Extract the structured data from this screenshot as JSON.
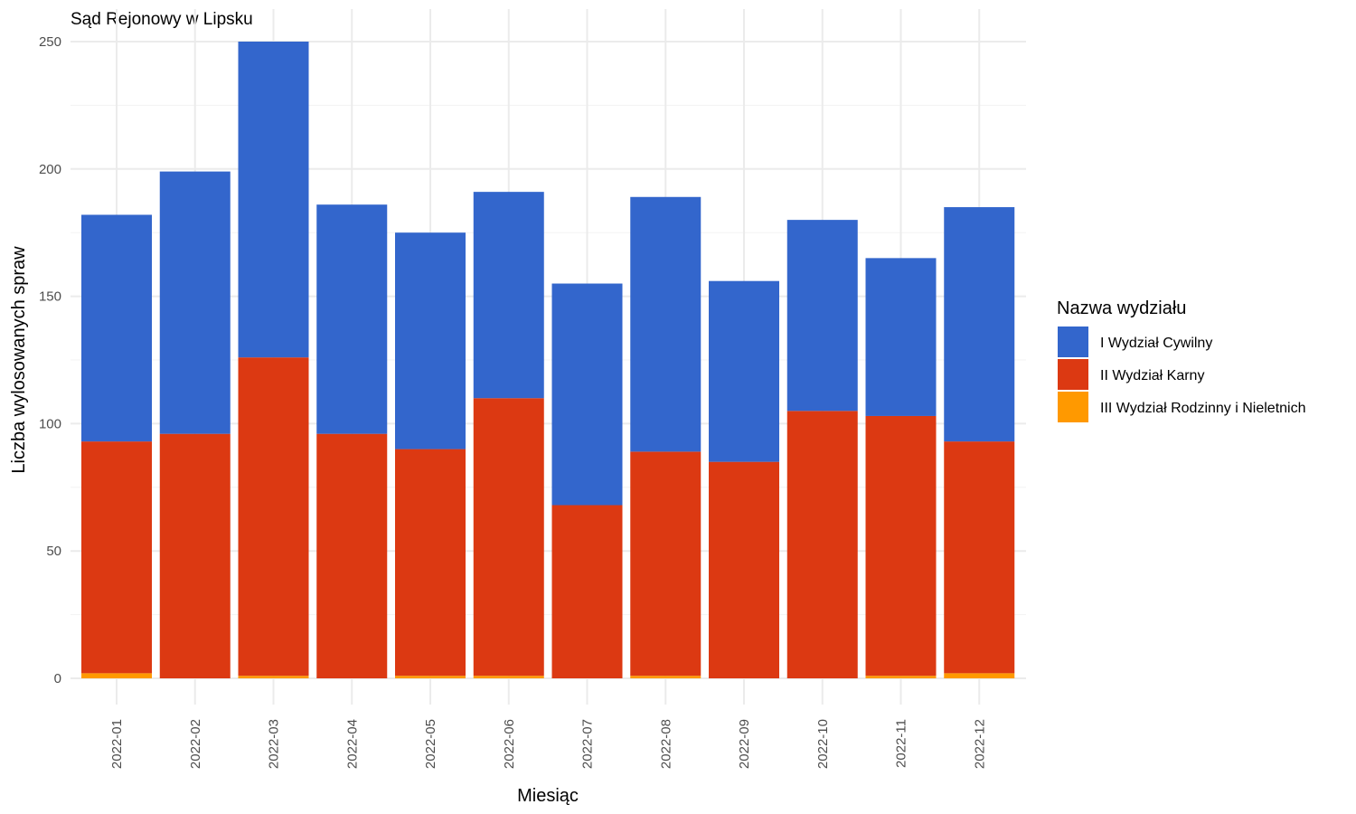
{
  "chart_data": {
    "type": "bar",
    "stacked": true,
    "title": "Sąd Rejonowy w Lipsku",
    "xlabel": "Miesiąc",
    "ylabel": "Liczba wylosowanych spraw",
    "ylim": [
      0,
      250
    ],
    "yticks": [
      0,
      50,
      100,
      150,
      200,
      250
    ],
    "grid": true,
    "legend_title": "Nazwa wydziału",
    "legend_position": "right",
    "categories": [
      "2022-01",
      "2022-02",
      "2022-03",
      "2022-04",
      "2022-05",
      "2022-06",
      "2022-07",
      "2022-08",
      "2022-09",
      "2022-10",
      "2022-11",
      "2022-12"
    ],
    "series": [
      {
        "name": "I Wydział Cywilny",
        "color": "#3366CC",
        "values": [
          89,
          103,
          124,
          90,
          85,
          81,
          87,
          100,
          71,
          75,
          62,
          92
        ]
      },
      {
        "name": "II Wydział Karny",
        "color": "#DC3912",
        "values": [
          91,
          96,
          125,
          96,
          89,
          109,
          68,
          88,
          85,
          105,
          102,
          91
        ]
      },
      {
        "name": "III Wydział Rodzinny i Nieletnich",
        "color": "#FF9900",
        "values": [
          2,
          0,
          1,
          0,
          1,
          1,
          0,
          1,
          0,
          0,
          1,
          2
        ]
      }
    ]
  }
}
